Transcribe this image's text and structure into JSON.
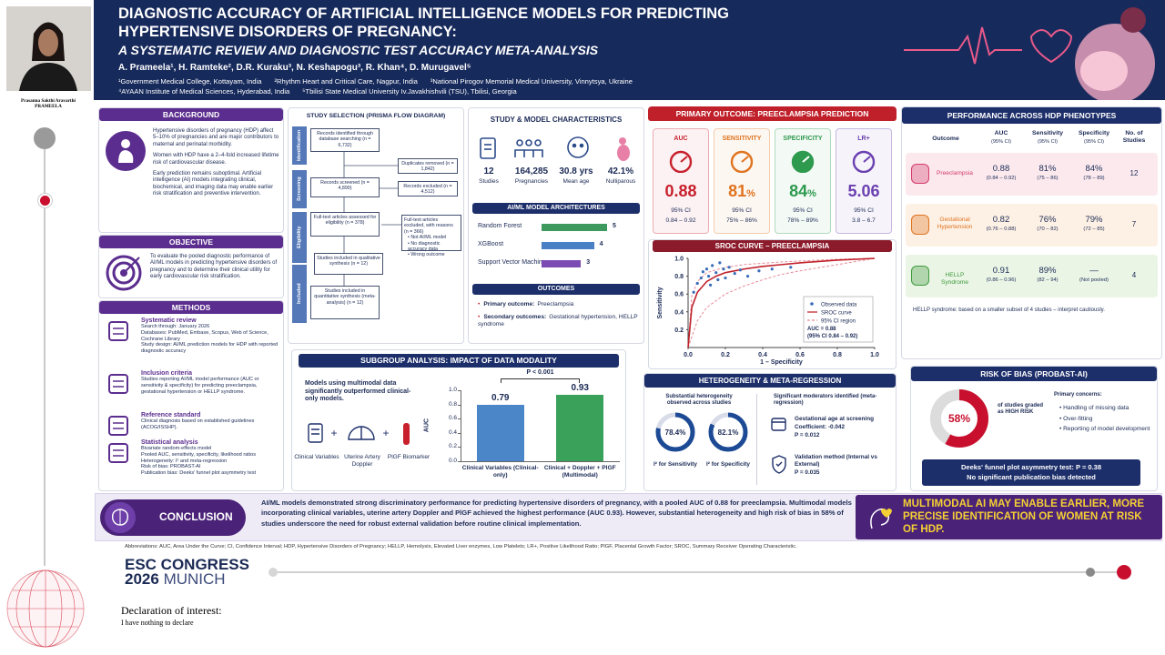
{
  "sidebar": {
    "name": "Prasanna Sakthi Aravarthi",
    "surname": "PRAMEELA"
  },
  "header": {
    "title_1": "DIAGNOSTIC ACCURACY OF ARTIFICIAL INTELLIGENCE MODELS FOR PREDICTING",
    "title_2": "HYPERTENSIVE DISORDERS OF PREGNANCY:",
    "subtitle": "A SYSTEMATIC REVIEW AND DIAGNOSTIC TEST ACCURACY META-ANALYSIS",
    "authors": "A. Prameela¹, H. Ramteke², D.R. Kuraku³, N. Keshapogu³, R. Khan⁴, D. Murugavel⁵",
    "affiliations_1": [
      "¹Government Medical College, Kottayam, India",
      "²Rhythm Heart and Critical Care, Nagpur, India",
      "³National Pirogov Memorial Medical University, Vinnytsya, Ukraine"
    ],
    "affiliations_2": [
      "⁴AYAAN Institute of Medical Sciences, Hyderabad, India",
      "⁵Tbilisi State Medical University Iv.Javakhishvili (TSU), Tbilisi, Georgia"
    ]
  },
  "background": {
    "heading": "BACKGROUND",
    "bullets": [
      "Hypertensive disorders of pregnancy (HDP) affect 5–10% of pregnancies and are major contributors to maternal and perinatal morbidity.",
      "Women with HDP have a 2–4-fold increased lifetime risk of cardiovascular disease.",
      "Early prediction remains suboptimal. Artificial intelligence (AI) models integrating clinical, biochemical, and imaging data may enable earlier risk stratification and preventive intervention."
    ]
  },
  "objective": {
    "heading": "OBJECTIVE",
    "text": "To evaluate the pooled diagnostic performance of AI/ML models in predicting hypertensive disorders of pregnancy and to determine their clinical utility for early cardiovascular risk stratification."
  },
  "methods": {
    "heading": "METHODS",
    "sections": [
      {
        "title": "Systematic review",
        "lines": [
          "Search through: January 2026",
          "Databases: PubMed, Embase, Scopus, Web of Science, Cochrane Library",
          "Study design: AI/ML prediction models for HDP with reported diagnostic accuracy"
        ]
      },
      {
        "title": "Inclusion criteria",
        "lines": [
          "Studies reporting AI/ML model performance (AUC or sensitivity & specificity) for predicting preeclampsia, gestational hypertension or HELLP syndrome."
        ]
      },
      {
        "title": "Reference standard",
        "lines": [
          "Clinical diagnosis based on established guidelines (ACOG/ISSHP)."
        ]
      },
      {
        "title": "Statistical analysis",
        "lines": [
          "Bivariate random-effects model",
          "Pooled AUC, sensitivity, specificity, likelihood ratios",
          "Heterogeneity: I² and meta-regression",
          "Risk of bias: PROBAST-AI",
          "Publication bias: Deeks' funnel plot asymmetry test"
        ]
      }
    ]
  },
  "prisma": {
    "heading": "STUDY SELECTION (PRISMA FLOW DIAGRAM)",
    "stages": [
      "Identification",
      "Screening",
      "Eligibility",
      "Included"
    ],
    "boxes": [
      "Records identified through database searching (n = 6,732)",
      "Records screened (n = 4,890)",
      "Full-text articles assessed for eligibility (n = 378)",
      "Studies included in qualitative synthesis (n = 12)",
      "Studies included in quantitative synthesis (meta-analysis) (n = 12)"
    ],
    "side_boxes": [
      "Duplicates removed (n = 1,842)",
      "Records excluded (n = 4,512)"
    ],
    "excluded": {
      "title": "Full-text articles excluded, with reasons (n = 366)",
      "reasons": [
        "Not AI/ML model",
        "No diagnostic accuracy data",
        "Wrong outcome"
      ]
    }
  },
  "study_chars": {
    "heading": "STUDY & MODEL CHARACTERISTICS",
    "stats": [
      {
        "value": "12",
        "label": "Studies"
      },
      {
        "value": "164,285",
        "label": "Pregnancies"
      },
      {
        "value": "30.8 yrs",
        "label": "Mean age"
      },
      {
        "value": "42.1%",
        "label": "Nulliparous"
      }
    ],
    "arch_heading": "AI/ML MODEL ARCHITECTURES",
    "architectures": {
      "names": [
        "Random Forest",
        "XGBoost",
        "Support Vector Machine"
      ],
      "values": [
        5,
        4,
        3
      ],
      "colors": [
        "#3e9a5c",
        "#4a80c4",
        "#7b4bb3"
      ]
    },
    "outcomes_heading": "OUTCOMES",
    "outcomes": [
      {
        "label": "Primary outcome:",
        "text": "Preeclampsia"
      },
      {
        "label": "Secondary outcomes:",
        "text": "Gestational hypertension, HELLP syndrome"
      }
    ]
  },
  "subgroup": {
    "heading": "SUBGROUP ANALYSIS: IMPACT OF DATA MODALITY",
    "text": "Models using multimodal data significantly outperformed clinical-only models.",
    "inputs": [
      "Clinical Variables",
      "Uterine Artery Doppler",
      "PlGF Biomarker"
    ],
    "chart": {
      "type": "bar",
      "categories": [
        "Clinical Variables (Clinical-only)",
        "Clinical + Doppler + PlGF (Multimodal)"
      ],
      "values": [
        0.79,
        0.93
      ],
      "colors": [
        "#4a86c8",
        "#3aa15a"
      ],
      "ylabel": "AUC",
      "ylim": [
        0,
        1
      ],
      "yticks": [
        {
          "value": 0,
          "label": "0.0"
        },
        0.2,
        0.4,
        0.6,
        0.8,
        {
          "value": 1,
          "label": "1.0"
        }
      ],
      "annotation": "P < 0.001"
    }
  },
  "primary": {
    "heading": "PRIMARY OUTCOME: PREECLAMPSIA PREDICTION",
    "cards": [
      {
        "name": "AUC",
        "value": "0.88",
        "ci_label": "95% CI",
        "ci": "0.84 – 0.92",
        "color": "#c8202c"
      },
      {
        "name": "SENSITIVITY",
        "value": "81",
        "unit": "%",
        "ci_label": "95% CI",
        "ci": "75% – 86%",
        "color": "#e0731e"
      },
      {
        "name": "SPECIFICITY",
        "value": "84",
        "unit": "%",
        "ci_label": "95% CI",
        "ci": "78% – 89%",
        "color": "#2e9a4e"
      },
      {
        "name": "LR+",
        "value": "5.06",
        "ci_label": "95% CI",
        "ci": "3.8 – 6.7",
        "color": "#6a3fb0"
      }
    ]
  },
  "sroc": {
    "heading": "SROC CURVE – PREECLAMPSIA",
    "xlabel": "1 – Specificity",
    "ylabel": "Sensitivity",
    "xlim": [
      0,
      1
    ],
    "ylim": [
      0,
      1
    ],
    "xticks": [
      {
        "value": 0,
        "label": "0.0"
      },
      0.2,
      0.4,
      0.6,
      0.8,
      {
        "value": 1,
        "label": "1.0"
      }
    ],
    "yticks": [
      0.2,
      0.4,
      0.6,
      0.8,
      {
        "value": 1,
        "label": "1.0"
      }
    ],
    "points": {
      "x": [
        0.03,
        0.05,
        0.07,
        0.08,
        0.1,
        0.11,
        0.13,
        0.15,
        0.17,
        0.19,
        0.2,
        0.22,
        0.25,
        0.28,
        0.32,
        0.38,
        0.45,
        0.55,
        0.12,
        0.16
      ],
      "y": [
        0.62,
        0.72,
        0.78,
        0.85,
        0.88,
        0.8,
        0.92,
        0.84,
        0.95,
        0.88,
        0.78,
        0.9,
        0.83,
        0.87,
        0.8,
        0.86,
        0.88,
        0.9,
        0.7,
        0.76
      ]
    },
    "curve": {
      "x": [
        0,
        0.02,
        0.05,
        0.1,
        0.15,
        0.2,
        0.3,
        0.4,
        0.5,
        0.6,
        0.8,
        1
      ],
      "y": [
        0,
        0.45,
        0.62,
        0.74,
        0.8,
        0.84,
        0.88,
        0.91,
        0.93,
        0.95,
        0.98,
        1
      ]
    },
    "ci_lower": {
      "x": [
        0,
        0.05,
        0.1,
        0.2,
        0.3,
        0.4,
        0.5,
        0.6,
        0.8,
        1
      ],
      "y": [
        0,
        0.3,
        0.45,
        0.6,
        0.69,
        0.76,
        0.82,
        0.86,
        0.93,
        1
      ]
    },
    "ci_upper": {
      "x": [
        0,
        0.02,
        0.05,
        0.1,
        0.2,
        0.3,
        0.5,
        0.8,
        1
      ],
      "y": [
        0,
        0.58,
        0.74,
        0.84,
        0.9,
        0.93,
        0.96,
        0.99,
        1
      ]
    },
    "legend": [
      "Observed data",
      "SROC curve",
      "95% CI region"
    ],
    "annotation": [
      "AUC = 0.88",
      "(95% CI 0.84 – 0.92)"
    ]
  },
  "heterogeneity": {
    "heading": "HETEROGENEITY & META-REGRESSION",
    "left_title": "Substantial heterogeneity observed across studies",
    "donuts": {
      "values": [
        78.4,
        82.1
      ],
      "value_labels": [
        "78.4%",
        "82.1%"
      ],
      "labels": [
        "I² for Sensitivity",
        "I² for Specificity"
      ]
    },
    "right_title": "Significant moderators identified (meta-regression)",
    "moderators": [
      {
        "title": "Gestational age at screening",
        "lines": [
          "Coefficient: -0.042",
          "P = 0.012"
        ]
      },
      {
        "title": "Validation method (Internal vs External)",
        "lines": [
          "P = 0.035"
        ]
      }
    ]
  },
  "performance": {
    "heading": "PERFORMANCE ACROSS HDP PHENOTYPES",
    "columns": [
      {
        "name": "Outcome"
      },
      {
        "name": "AUC",
        "sub": "(95% CI)"
      },
      {
        "name": "Sensitivity",
        "sub": "(95% CI)"
      },
      {
        "name": "Specificity",
        "sub": "(95% CI)"
      },
      {
        "name": "No. of Studies"
      }
    ],
    "rows": [
      {
        "outcome": "Preeclampsia",
        "auc": "0.88",
        "auc_ci": "(0.84 – 0.92)",
        "sens": "81%",
        "sens_ci": "(75 – 86)",
        "spec": "84%",
        "spec_ci": "(78 – 89)",
        "studies": "12"
      },
      {
        "outcome": "Gestational Hypertension",
        "auc": "0.82",
        "auc_ci": "(0.76 – 0.88)",
        "sens": "76%",
        "sens_ci": "(70 – 82)",
        "spec": "79%",
        "spec_ci": "(72 – 85)",
        "studies": "7"
      },
      {
        "outcome": "HELLP Syndrome",
        "auc": "0.91",
        "auc_ci": "(0.86 – 0.96)",
        "sens": "89%",
        "sens_ci": "(82 – 94)",
        "spec": "—",
        "spec_ci": "(Not pooled)",
        "studies": "4"
      }
    ],
    "note": "HELLP syndrome: based on a smaller subset of 4 studies – interpret cautiously."
  },
  "risk_of_bias": {
    "heading": "RISK OF BIAS (PROBAST-AI)",
    "donut": {
      "value": 58,
      "value_label": "58%"
    },
    "caption": "of studies graded as HIGH RISK",
    "concerns_title": "Primary concerns:",
    "concerns": [
      "Handling of missing data",
      "Over-fitting",
      "Reporting of model development"
    ],
    "deeks": [
      "Deeks' funnel plot asymmetry test: P = 0.38",
      "No significant publication bias detected"
    ]
  },
  "conclusion": {
    "heading": "CONCLUSION",
    "text": "AI/ML models demonstrated strong discriminatory performance for predicting hypertensive disorders of pregnancy, with a pooled AUC of 0.88 for preeclampsia. Multimodal models incorporating clinical variables, uterine artery Doppler and PlGF achieved the highest performance (AUC 0.93). However, substantial heterogeneity and high risk of bias in 58% of studies underscore the need for robust external validation before routine clinical implementation.",
    "callout": "MULTIMODAL AI MAY ENABLE EARLIER, MORE PRECISE IDENTIFICATION OF WOMEN AT RISK OF HDP."
  },
  "abbreviations": "Abbreviations: AUC, Area Under the Curve; CI, Confidence Interval; HDP, Hypertensive Disorders of Pregnancy; HELLP, Hemolysis, Elevated Liver enzymes, Low Platelets; LR+, Positive Likelihood Ratio; PlGF, Placental Growth Factor; SROC, Summary Receiver Operating Characteristic.",
  "footer": {
    "congress": "ESC CONGRESS",
    "year": "2026",
    "city": "MUNICH"
  },
  "declaration": {
    "title": "Declaration of interest:",
    "text": "I have nothing to declare"
  }
}
